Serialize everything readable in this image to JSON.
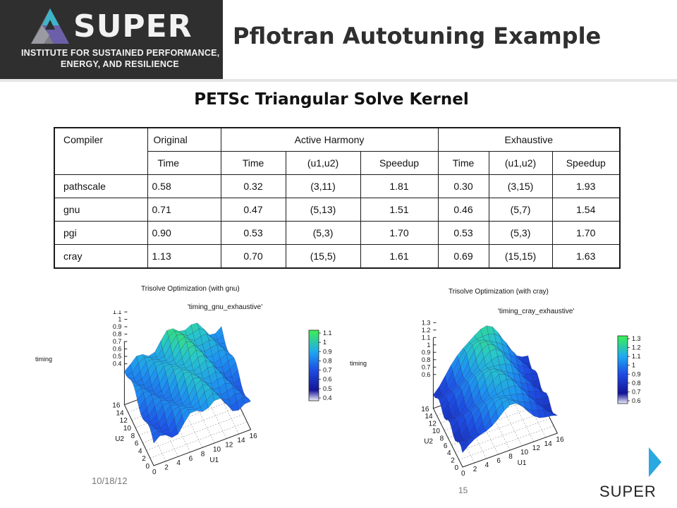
{
  "header": {
    "logo_word": "SUPER",
    "logo_line1": "INSTITUTE FOR SUSTAINED PERFORMANCE,",
    "logo_line2": "ENERGY, AND RESILIENCE",
    "title": "Pflotran Autotuning Example",
    "colors": {
      "logo_bg": "#2f2f2f",
      "title": "#2f2f2f"
    }
  },
  "subtitle": "PETSc Triangular Solve Kernel",
  "table": {
    "head_row1": {
      "compiler": "Compiler",
      "original": "Original",
      "active": "Active Harmony",
      "exhaustive": "Exhaustive"
    },
    "head_row2": [
      "Time",
      "Time",
      "(u1,u2)",
      "Speedup",
      "Time",
      "(u1,u2)",
      "Speedup"
    ],
    "rows": [
      [
        "pathscale",
        "0.58",
        "0.32",
        "(3,11)",
        "1.81",
        "0.30",
        "(3,15)",
        "1.93"
      ],
      [
        "gnu",
        "0.71",
        "0.47",
        "(5,13)",
        "1.51",
        "0.46",
        "(5,7)",
        "1.54"
      ],
      [
        "pgi",
        "0.90",
        "0.53",
        "(5,3)",
        "1.70",
        "0.53",
        "(5,3)",
        "1.70"
      ],
      [
        "cray",
        "1.13",
        "0.70",
        "(15,5)",
        "1.61",
        "0.69",
        "(15,15)",
        "1.63"
      ]
    ]
  },
  "chart_data": [
    {
      "type": "surface",
      "title": "Trisolve Optimization (with gnu)",
      "series_label": "'timing_gnu_exhaustive'",
      "xlabel": "U1",
      "ylabel": "U2",
      "zlabel": "timing",
      "x_ticks": [
        "0",
        "2",
        "4",
        "6",
        "8",
        "10",
        "12",
        "14",
        "16"
      ],
      "y_ticks": [
        "0",
        "2",
        "4",
        "6",
        "8",
        "10",
        "12",
        "14",
        "16"
      ],
      "z_ticks": [
        "0.4",
        "0.5",
        "0.6",
        "0.7",
        "0.8",
        "0.9",
        "1",
        "1.1"
      ],
      "colorbar_ticks": [
        "1.1",
        "1",
        "0.9",
        "0.8",
        "0.7",
        "0.6",
        "0.5",
        "0.4"
      ],
      "zlim": [
        0.4,
        1.1
      ]
    },
    {
      "type": "surface",
      "title": "Trisolve Optimization (with cray)",
      "series_label": "'timing_cray_exhaustive'",
      "xlabel": "U1",
      "ylabel": "U2",
      "zlabel": "timing",
      "x_ticks": [
        "0",
        "2",
        "4",
        "6",
        "8",
        "10",
        "12",
        "14",
        "16"
      ],
      "y_ticks": [
        "0",
        "2",
        "4",
        "6",
        "8",
        "10",
        "12",
        "14",
        "16"
      ],
      "z_ticks": [
        "0.6",
        "0.7",
        "0.8",
        "0.9",
        "1",
        "1.1",
        "1.2",
        "1.3"
      ],
      "colorbar_ticks": [
        "1.3",
        "1.2",
        "1.1",
        "1",
        "0.9",
        "0.8",
        "0.7",
        "0.6"
      ],
      "zlim": [
        0.6,
        1.3
      ]
    }
  ],
  "footer": {
    "date": "10/18/12",
    "page": "15",
    "brand": "SUPER"
  }
}
